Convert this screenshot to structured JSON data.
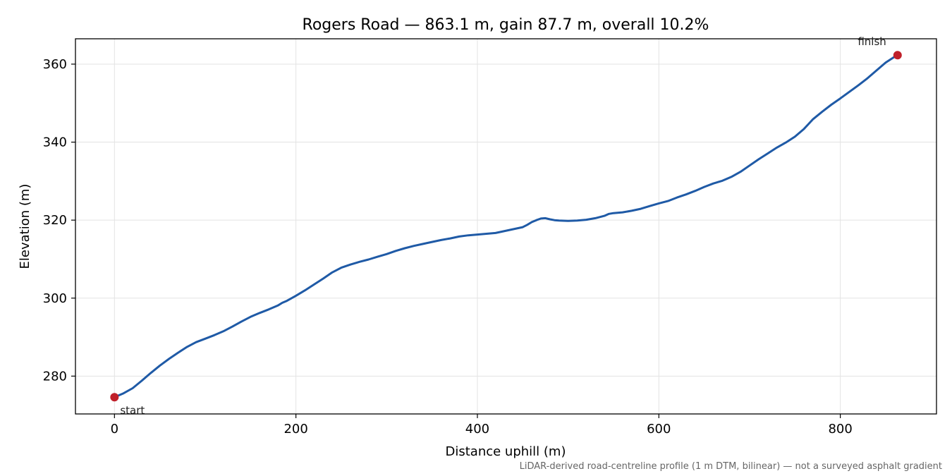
{
  "chart_data": {
    "type": "line",
    "title": "Rogers Road — 863.1 m, gain 87.7 m, overall 10.2%",
    "xlabel": "Distance uphill (m)",
    "ylabel": "Elevation (m)",
    "footnote": "LiDAR-derived road-centreline profile (1 m DTM, bilinear) — not a surveyed asphalt gradient",
    "xlim": [
      -43,
      906
    ],
    "ylim": [
      270.3,
      366.5
    ],
    "xticks": [
      0,
      200,
      400,
      600,
      800
    ],
    "yticks": [
      280,
      300,
      320,
      340,
      360
    ],
    "grid": true,
    "line_color": "#1f5aa6",
    "marker_color": "#c0202a",
    "series": [
      {
        "x": [
          0,
          10,
          20,
          30,
          40,
          50,
          60,
          70,
          80,
          90,
          100,
          110,
          120,
          130,
          140,
          150,
          160,
          170,
          180,
          185,
          190,
          200,
          210,
          220,
          230,
          240,
          250,
          260,
          270,
          280,
          290,
          300,
          310,
          320,
          330,
          340,
          350,
          360,
          370,
          380,
          390,
          400,
          410,
          420,
          430,
          440,
          450,
          455,
          460,
          465,
          470,
          475,
          480,
          485,
          490,
          500,
          510,
          520,
          530,
          540,
          545,
          550,
          560,
          570,
          580,
          590,
          600,
          610,
          620,
          630,
          640,
          650,
          660,
          670,
          680,
          690,
          700,
          710,
          720,
          730,
          740,
          750,
          760,
          770,
          780,
          790,
          800,
          810,
          820,
          830,
          840,
          850,
          860,
          863.1
        ],
        "y": [
          274.6,
          275.6,
          276.9,
          278.8,
          280.8,
          282.7,
          284.4,
          286.0,
          287.5,
          288.7,
          289.6,
          290.5,
          291.5,
          292.7,
          294.0,
          295.2,
          296.2,
          297.1,
          298.1,
          298.8,
          299.3,
          300.6,
          302.0,
          303.5,
          305.0,
          306.6,
          307.8,
          308.6,
          309.3,
          309.9,
          310.6,
          311.3,
          312.1,
          312.8,
          313.4,
          313.9,
          314.4,
          314.9,
          315.3,
          315.8,
          316.1,
          316.3,
          316.5,
          316.7,
          317.2,
          317.7,
          318.2,
          318.8,
          319.5,
          320.0,
          320.4,
          320.5,
          320.2,
          320.0,
          319.9,
          319.8,
          319.9,
          320.1,
          320.5,
          321.1,
          321.6,
          321.8,
          322.0,
          322.4,
          322.9,
          323.6,
          324.3,
          324.9,
          325.8,
          326.6,
          327.5,
          328.5,
          329.4,
          330.1,
          331.1,
          332.4,
          334.0,
          335.6,
          337.1,
          338.6,
          339.9,
          341.4,
          343.4,
          345.9,
          347.8,
          349.6,
          351.2,
          352.9,
          354.6,
          356.4,
          358.4,
          360.4,
          361.9,
          362.3
        ]
      }
    ],
    "markers": [
      {
        "label": "start",
        "x": 0,
        "y": 274.6
      },
      {
        "label": "finish",
        "x": 863.1,
        "y": 362.3
      }
    ]
  }
}
